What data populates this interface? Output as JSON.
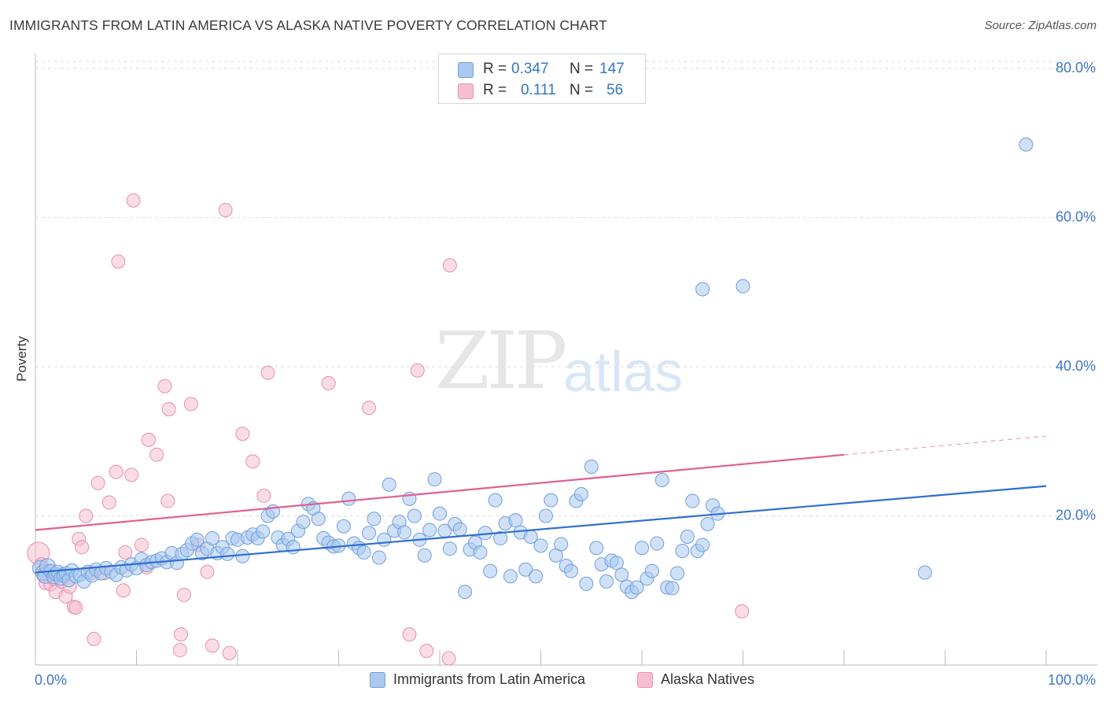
{
  "title": "IMMIGRANTS FROM LATIN AMERICA VS ALASKA NATIVE POVERTY CORRELATION CHART",
  "source": "Source: ZipAtlas.com",
  "watermark": {
    "zip": "ZIP",
    "atlas": "atlas"
  },
  "legend_top": [
    {
      "r_label": "R = ",
      "r_value": "0.347",
      "n_label": "N = ",
      "n_value": "147",
      "color": "#aac8f0"
    },
    {
      "r_label": "R = ",
      "r_value": "0.111",
      "n_label": "N = ",
      "n_value": "56",
      "color": "#f6bfd0"
    }
  ],
  "legend_bottom": [
    {
      "label": "Immigrants from Latin America",
      "color": "#aac8f0"
    },
    {
      "label": "Alaska Natives",
      "color": "#f6bfd0"
    }
  ],
  "colors": {
    "blue_fill": "#aac8f0",
    "blue_stroke": "#6f9fdc",
    "blue_line": "#2e6fd0",
    "pink_fill": "#f6bfd0",
    "pink_stroke": "#e890ad",
    "pink_line": "#e0608f",
    "axis_text": "#3d75c9"
  },
  "chart_data": {
    "type": "scatter",
    "ylabel": "Poverty",
    "xlim": [
      0,
      100
    ],
    "ylim": [
      0,
      80
    ],
    "x_tick_labels": [
      "0.0%",
      "100.0%"
    ],
    "y_ticks": [
      20,
      40,
      60,
      80
    ],
    "y_tick_labels": [
      "20.0%",
      "40.0%",
      "60.0%",
      "80.0%"
    ],
    "grid": true,
    "series": [
      {
        "name": "Immigrants from Latin America",
        "trend": {
          "x": [
            0,
            100
          ],
          "y": [
            12.4,
            24.0
          ]
        },
        "points": [
          [
            0.5,
            13.0
          ],
          [
            0.8,
            12.4
          ],
          [
            1.0,
            12.0
          ],
          [
            1.2,
            13.2
          ],
          [
            1.5,
            12.6
          ],
          [
            1.8,
            11.8
          ],
          [
            2.0,
            12.2
          ],
          [
            2.2,
            12.5
          ],
          [
            2.5,
            11.6
          ],
          [
            2.8,
            12.0
          ],
          [
            3.0,
            12.3
          ],
          [
            3.3,
            11.4
          ],
          [
            3.6,
            12.7
          ],
          [
            4.0,
            11.9
          ],
          [
            4.4,
            12.1
          ],
          [
            4.8,
            11.2
          ],
          [
            5.2,
            12.5
          ],
          [
            5.6,
            12.0
          ],
          [
            6.0,
            12.8
          ],
          [
            6.5,
            12.3
          ],
          [
            7.0,
            13.0
          ],
          [
            7.5,
            12.5
          ],
          [
            8.0,
            12.1
          ],
          [
            8.5,
            13.1
          ],
          [
            9.0,
            12.7
          ],
          [
            9.5,
            13.5
          ],
          [
            10.0,
            13.0
          ],
          [
            10.5,
            14.2
          ],
          [
            11.0,
            13.4
          ],
          [
            11.5,
            13.8
          ],
          [
            12.0,
            14.0
          ],
          [
            12.5,
            14.3
          ],
          [
            13.0,
            13.8
          ],
          [
            13.5,
            15.0
          ],
          [
            14.0,
            13.7
          ],
          [
            14.5,
            14.9
          ],
          [
            15.0,
            15.4
          ],
          [
            15.5,
            16.3
          ],
          [
            16.0,
            16.8
          ],
          [
            16.5,
            15.0
          ],
          [
            17.0,
            15.6
          ],
          [
            17.5,
            17.0
          ],
          [
            18.0,
            15.0
          ],
          [
            18.5,
            15.8
          ],
          [
            19.0,
            14.9
          ],
          [
            19.5,
            17.0
          ],
          [
            20.0,
            16.8
          ],
          [
            20.5,
            14.6
          ],
          [
            21.0,
            17.1
          ],
          [
            21.5,
            17.5
          ],
          [
            22.0,
            17.0
          ],
          [
            22.5,
            17.9
          ],
          [
            23.0,
            20.0
          ],
          [
            23.5,
            20.6
          ],
          [
            24.0,
            17.1
          ],
          [
            24.5,
            16.1
          ],
          [
            25.0,
            16.9
          ],
          [
            25.5,
            15.8
          ],
          [
            26.0,
            18.0
          ],
          [
            26.5,
            19.2
          ],
          [
            27.0,
            21.6
          ],
          [
            27.5,
            21.0
          ],
          [
            28.0,
            19.6
          ],
          [
            28.5,
            17.0
          ],
          [
            29.0,
            16.4
          ],
          [
            29.5,
            15.9
          ],
          [
            30.0,
            16.0
          ],
          [
            30.5,
            18.6
          ],
          [
            31.0,
            22.3
          ],
          [
            31.5,
            16.3
          ],
          [
            32.0,
            15.7
          ],
          [
            32.5,
            15.1
          ],
          [
            33.0,
            17.7
          ],
          [
            33.5,
            19.6
          ],
          [
            34.0,
            14.4
          ],
          [
            34.5,
            16.8
          ],
          [
            35.0,
            24.2
          ],
          [
            35.5,
            18.0
          ],
          [
            36.0,
            19.2
          ],
          [
            36.5,
            17.8
          ],
          [
            37.0,
            22.3
          ],
          [
            37.5,
            20.0
          ],
          [
            38.0,
            16.8
          ],
          [
            38.5,
            14.7
          ],
          [
            39.0,
            18.1
          ],
          [
            39.5,
            24.9
          ],
          [
            40.0,
            20.3
          ],
          [
            40.5,
            18.0
          ],
          [
            41.0,
            15.6
          ],
          [
            41.5,
            18.9
          ],
          [
            42.0,
            18.2
          ],
          [
            42.5,
            9.8
          ],
          [
            43.0,
            15.5
          ],
          [
            43.5,
            16.4
          ],
          [
            44.0,
            15.1
          ],
          [
            44.5,
            17.7
          ],
          [
            45.0,
            12.6
          ],
          [
            45.5,
            22.1
          ],
          [
            46.0,
            17.0
          ],
          [
            46.5,
            19.0
          ],
          [
            47.0,
            11.9
          ],
          [
            47.5,
            19.4
          ],
          [
            48.0,
            17.8
          ],
          [
            48.5,
            12.8
          ],
          [
            49.0,
            17.2
          ],
          [
            49.5,
            11.9
          ],
          [
            50.0,
            16.0
          ],
          [
            50.5,
            20.0
          ],
          [
            51.0,
            22.1
          ],
          [
            51.5,
            14.7
          ],
          [
            52.0,
            16.2
          ],
          [
            52.5,
            13.3
          ],
          [
            53.0,
            12.6
          ],
          [
            53.5,
            22.0
          ],
          [
            54.0,
            22.9
          ],
          [
            54.5,
            10.9
          ],
          [
            55.0,
            26.6
          ],
          [
            55.5,
            15.7
          ],
          [
            56.0,
            13.5
          ],
          [
            56.5,
            11.2
          ],
          [
            57.0,
            14.0
          ],
          [
            57.5,
            13.7
          ],
          [
            58.0,
            12.1
          ],
          [
            58.5,
            10.5
          ],
          [
            59.0,
            9.8
          ],
          [
            59.5,
            10.4
          ],
          [
            60.0,
            15.7
          ],
          [
            60.5,
            11.6
          ],
          [
            61.0,
            12.6
          ],
          [
            61.5,
            16.3
          ],
          [
            62.0,
            24.8
          ],
          [
            62.5,
            10.4
          ],
          [
            63.0,
            10.3
          ],
          [
            63.5,
            12.3
          ],
          [
            64.0,
            15.3
          ],
          [
            64.5,
            17.2
          ],
          [
            65.0,
            22.0
          ],
          [
            65.5,
            15.3
          ],
          [
            66.0,
            16.1
          ],
          [
            66.5,
            18.9
          ],
          [
            67.0,
            21.4
          ],
          [
            67.5,
            20.3
          ],
          [
            66.0,
            50.4
          ],
          [
            70.0,
            50.8
          ],
          [
            98.0,
            69.8
          ],
          [
            88.0,
            12.4
          ]
        ]
      },
      {
        "name": "Alaska Natives",
        "trend": {
          "x": [
            0,
            80
          ],
          "y": [
            18.1,
            28.2
          ]
        },
        "trend_extension": {
          "x": [
            80,
            100
          ],
          "y": [
            28.2,
            30.7
          ]
        },
        "points": [
          [
            0.3,
            15.0
          ],
          [
            0.6,
            13.5
          ],
          [
            0.8,
            12.0
          ],
          [
            1.0,
            11.0
          ],
          [
            1.2,
            12.5
          ],
          [
            1.5,
            10.8
          ],
          [
            1.8,
            11.6
          ],
          [
            2.0,
            9.8
          ],
          [
            2.3,
            12.0
          ],
          [
            2.6,
            11.2
          ],
          [
            3.0,
            9.2
          ],
          [
            3.4,
            10.5
          ],
          [
            3.8,
            7.8
          ],
          [
            4.0,
            7.7
          ],
          [
            4.3,
            16.9
          ],
          [
            4.6,
            15.8
          ],
          [
            5.0,
            20.0
          ],
          [
            5.5,
            12.3
          ],
          [
            5.8,
            3.5
          ],
          [
            6.2,
            24.4
          ],
          [
            6.8,
            12.3
          ],
          [
            7.3,
            21.8
          ],
          [
            8.0,
            25.9
          ],
          [
            8.2,
            54.1
          ],
          [
            8.7,
            10.0
          ],
          [
            8.9,
            15.1
          ],
          [
            9.5,
            25.5
          ],
          [
            9.7,
            62.3
          ],
          [
            10.5,
            16.1
          ],
          [
            11.0,
            13.1
          ],
          [
            11.2,
            30.2
          ],
          [
            12.0,
            28.2
          ],
          [
            12.8,
            37.4
          ],
          [
            13.1,
            22.0
          ],
          [
            13.2,
            34.3
          ],
          [
            14.3,
            2.0
          ],
          [
            14.4,
            4.1
          ],
          [
            14.7,
            9.4
          ],
          [
            15.4,
            35.0
          ],
          [
            16.1,
            16.1
          ],
          [
            17.0,
            12.5
          ],
          [
            17.5,
            2.6
          ],
          [
            18.8,
            61.0
          ],
          [
            19.2,
            1.6
          ],
          [
            20.5,
            31.0
          ],
          [
            21.5,
            27.3
          ],
          [
            22.6,
            22.7
          ],
          [
            23.0,
            39.2
          ],
          [
            29.0,
            37.8
          ],
          [
            33.0,
            34.5
          ],
          [
            37.0,
            4.1
          ],
          [
            37.8,
            39.5
          ],
          [
            38.7,
            1.9
          ],
          [
            40.9,
            0.9
          ],
          [
            41.0,
            53.6
          ],
          [
            69.9,
            7.2
          ]
        ]
      }
    ]
  }
}
